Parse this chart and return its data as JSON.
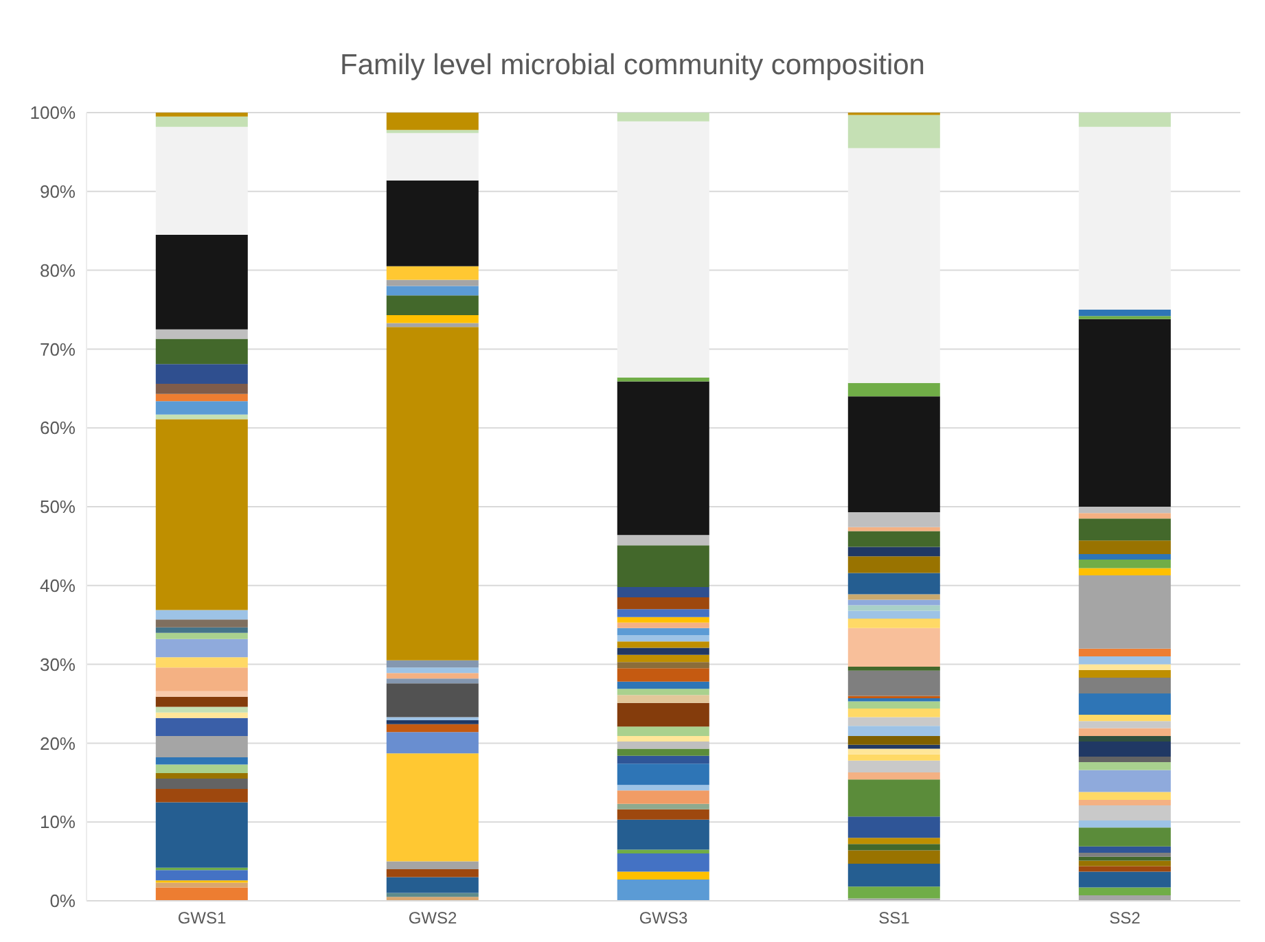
{
  "chart_data": {
    "type": "bar",
    "stacked": true,
    "title": "Family level microbial community composition",
    "categories": [
      "GWS1",
      "GWS2",
      "GWS3",
      "SS1",
      "SS2"
    ],
    "ylim": [
      0,
      100
    ],
    "yticks": [
      {
        "value": 0,
        "label": "0%"
      },
      {
        "value": 10,
        "label": "10%"
      },
      {
        "value": 20,
        "label": "20%"
      },
      {
        "value": 30,
        "label": "30%"
      },
      {
        "value": 40,
        "label": "40%"
      },
      {
        "value": 50,
        "label": "50%"
      },
      {
        "value": 60,
        "label": "60%"
      },
      {
        "value": 70,
        "label": "70%"
      },
      {
        "value": 80,
        "label": "80%"
      },
      {
        "value": 90,
        "label": "90%"
      },
      {
        "value": 100,
        "label": "100%"
      }
    ],
    "grid": "y",
    "legend": false,
    "series": [
      {
        "values": [
          1.7,
          0.5,
          2.7,
          0.3,
          0.7
        ],
        "colors": [
          "#ed7d31",
          "#d9a66f",
          "#5b9bd5",
          "#a5a5a5",
          "#a5a5a5"
        ]
      },
      {
        "values": [
          0.6,
          0.5,
          1.0,
          1.5,
          1.0
        ],
        "colors": [
          "#d9a66f",
          "#5e8b8b",
          "#ffc000",
          "#70ad47",
          "#70ad47"
        ]
      },
      {
        "values": [
          0.3,
          2.0,
          2.3,
          2.9,
          2.0
        ],
        "colors": [
          "#ffc000",
          "#255e91",
          "#4472c4",
          "#255e91",
          "#255e91"
        ]
      },
      {
        "values": [
          1.3,
          1.0,
          0.5,
          1.7,
          0.7
        ],
        "colors": [
          "#4472c4",
          "#9e480e",
          "#70ad47",
          "#997300",
          "#9e480e"
        ]
      },
      {
        "values": [
          0.3,
          1.0,
          3.8,
          0.8,
          0.7
        ],
        "colors": [
          "#70ad47",
          "#a5a5a5",
          "#255e91",
          "#43682b",
          "#997300"
        ]
      },
      {
        "values": [
          8.3,
          13.7,
          1.3,
          0.8,
          0.5
        ],
        "colors": [
          "#255e91",
          "#ffc832",
          "#9e480e",
          "#bf8f00",
          "#43682b"
        ]
      },
      {
        "values": [
          1.7,
          2.7,
          0.7,
          2.7,
          0.5
        ],
        "colors": [
          "#9e480e",
          "#698ed0",
          "#8faa8f",
          "#2f5597",
          "#7f7f7f"
        ]
      },
      {
        "values": [
          1.3,
          1.0,
          1.7,
          4.7,
          0.8
        ],
        "colors": [
          "#636363",
          "#c55a11",
          "#f19c65",
          "#5b8c3a",
          "#2f5597"
        ]
      },
      {
        "values": [
          0.7,
          0.5,
          0.7,
          0.9,
          2.4
        ],
        "colors": [
          "#997300",
          "#203864",
          "#9dc3e6",
          "#f4b183",
          "#5b8c3a"
        ]
      },
      {
        "values": [
          1.1,
          0.4,
          2.7,
          1.5,
          0.9
        ],
        "colors": [
          "#a9d18e",
          "#9dc3e6",
          "#2e75b6",
          "#c9c9c9",
          "#9dc3e6"
        ]
      },
      {
        "values": [
          0.9,
          4.3,
          1.0,
          0.8,
          1.9
        ],
        "colors": [
          "#2e75b6",
          "#525252",
          "#2f5597",
          "#ffd966",
          "#c9c9c9"
        ]
      },
      {
        "values": [
          2.7,
          0.6,
          0.9,
          0.7,
          0.7
        ],
        "colors": [
          "#a5a5a5",
          "#8497b0",
          "#5b8c3a",
          "#ffe699",
          "#f4b183"
        ]
      },
      {
        "values": [
          2.3,
          0.7,
          0.9,
          0.5,
          1.0
        ],
        "colors": [
          "#3a5fa8",
          "#f4b183",
          "#bfbfbf",
          "#203864",
          "#ffd966"
        ]
      },
      {
        "values": [
          0.7,
          0.7,
          0.7,
          1.1,
          2.8
        ],
        "colors": [
          "#ffe699",
          "#9dc3e6",
          "#ffe699",
          "#7f6000",
          "#8faadc"
        ]
      },
      {
        "values": [
          0.7,
          0.9,
          1.2,
          1.3,
          1.0
        ],
        "colors": [
          "#c5e0b4",
          "#8497b0",
          "#a9d18e",
          "#9dc3e6",
          "#a9d18e"
        ]
      },
      {
        "values": [
          1.3,
          42.3,
          3.0,
          1.1,
          0.7
        ],
        "colors": [
          "#843c0c",
          "#bf8f00",
          "#843c0c",
          "#c9c9c9",
          "#636363"
        ]
      },
      {
        "values": [
          0.7,
          0.5,
          1.0,
          1.1,
          1.9
        ],
        "colors": [
          "#f8cbad",
          "#a5a5a5",
          "#e2c79a",
          "#ffd966",
          "#203864"
        ]
      },
      {
        "values": [
          3.0,
          1.0,
          0.8,
          0.9,
          0.7
        ],
        "colors": [
          "#f4b183",
          "#ffc000",
          "#a9d18e",
          "#a9d18e",
          "#2f4f3f"
        ]
      },
      {
        "values": [
          1.3,
          2.5,
          0.9,
          0.4,
          1.0
        ],
        "colors": [
          "#ffd966",
          "#43682b",
          "#2e75b6",
          "#2e75b6",
          "#f4b183"
        ]
      },
      {
        "values": [
          2.3,
          1.2,
          1.7,
          0.3,
          0.9
        ],
        "colors": [
          "#8faadc",
          "#5b9bd5",
          "#c55a11",
          "#c55a11",
          "#c9c9c9"
        ]
      },
      {
        "values": [
          0.8,
          0.8,
          0.8,
          3.2,
          0.8
        ],
        "colors": [
          "#a9d18e",
          "#a5a5a5",
          "#8b6d3a",
          "#7f7f7f",
          "#ffd966"
        ]
      },
      {
        "values": [
          0.7,
          1.7,
          0.9,
          0.5,
          2.7
        ],
        "colors": [
          "#44748a",
          "#ffc832",
          "#bf8f00",
          "#43682b",
          "#2e75b6"
        ]
      },
      {
        "values": [
          1.0,
          10.9,
          0.9,
          4.9,
          2.0
        ],
        "colors": [
          "#7f6f5f",
          "#161616",
          "#203864",
          "#f8bf9a",
          "#7f7f7f"
        ]
      },
      {
        "values": [
          1.2,
          6.0,
          0.8,
          1.2,
          1.0
        ],
        "colors": [
          "#9dc3e6",
          "#f2f2f2",
          "#bf8f00",
          "#ffd966",
          "#bf8f00"
        ]
      },
      {
        "values": [
          24.2,
          0.4,
          0.8,
          1.0,
          0.7
        ],
        "colors": [
          "#bf8f00",
          "#c5e0b4",
          "#9dc3e6",
          "#9dc3e6",
          "#ffe699"
        ]
      },
      {
        "values": [
          0.6,
          2.2,
          0.9,
          0.7,
          1.0
        ],
        "colors": [
          "#c5e0b4",
          "#bf8f00",
          "#5b9bd5",
          "#a9d1c8",
          "#9dc3e6"
        ]
      },
      {
        "values": [
          1.7,
          null,
          0.7,
          0.7,
          1.0
        ],
        "colors": [
          "#5b9bd5",
          null,
          "#f4b183",
          "#8faadc",
          "#ed7d31"
        ]
      },
      {
        "values": [
          0.9,
          null,
          0.7,
          0.7,
          9.3
        ],
        "colors": [
          "#ed7d31",
          null,
          "#ffc000",
          "#c9a96e",
          "#a5a5a5"
        ]
      },
      {
        "values": [
          1.3,
          null,
          1.0,
          2.7,
          0.9
        ],
        "colors": [
          "#7f5c4a",
          null,
          "#4472c4",
          "#255e91",
          "#ffc000"
        ]
      },
      {
        "values": [
          2.5,
          null,
          1.5,
          2.1,
          1.1
        ],
        "colors": [
          "#2f4f8f",
          null,
          "#9e480e",
          "#997300",
          "#70ad47"
        ]
      },
      {
        "values": [
          3.2,
          null,
          1.3,
          1.2,
          0.7
        ],
        "colors": [
          "#43682b",
          null,
          "#2f4f8f",
          "#203864",
          "#2e75b6"
        ]
      },
      {
        "values": [
          1.2,
          null,
          5.3,
          2.0,
          1.7
        ],
        "colors": [
          "#bfbfbf",
          null,
          "#43682b",
          "#43682b",
          "#997300"
        ]
      },
      {
        "values": [
          12.0,
          null,
          1.3,
          0.5,
          2.8
        ],
        "colors": [
          "#161616",
          null,
          "#bfbfbf",
          "#f4b183",
          "#43682b"
        ]
      },
      {
        "values": [
          13.7,
          null,
          19.5,
          1.9,
          0.7
        ],
        "colors": [
          "#f2f2f2",
          null,
          "#161616",
          "#bfbfbf",
          "#f4b183"
        ]
      },
      {
        "values": [
          1.3,
          null,
          0.5,
          14.7,
          0.8
        ],
        "colors": [
          "#c5e0b4",
          null,
          "#70ad47",
          "#161616",
          "#bfbfbf"
        ]
      },
      {
        "values": [
          0.5,
          null,
          32.5,
          1.7,
          23.8
        ],
        "colors": [
          "#bf8f00",
          null,
          "#f2f2f2",
          "#70ad47",
          "#161616"
        ]
      },
      {
        "values": [
          null,
          null,
          1.1,
          29.8,
          0.4
        ],
        "colors": [
          null,
          null,
          "#c5e0b4",
          "#f2f2f2",
          "#70ad47"
        ]
      },
      {
        "values": [
          null,
          null,
          null,
          4.2,
          0.8
        ],
        "colors": [
          null,
          null,
          null,
          "#c5e0b4",
          "#2e75b6"
        ]
      },
      {
        "values": [
          null,
          null,
          null,
          0.3,
          23.2
        ],
        "colors": [
          null,
          null,
          null,
          "#bf8f00",
          "#f2f2f2"
        ]
      },
      {
        "values": [
          null,
          null,
          null,
          null,
          1.8
        ],
        "colors": [
          null,
          null,
          null,
          null,
          "#c5e0b4"
        ]
      }
    ]
  }
}
